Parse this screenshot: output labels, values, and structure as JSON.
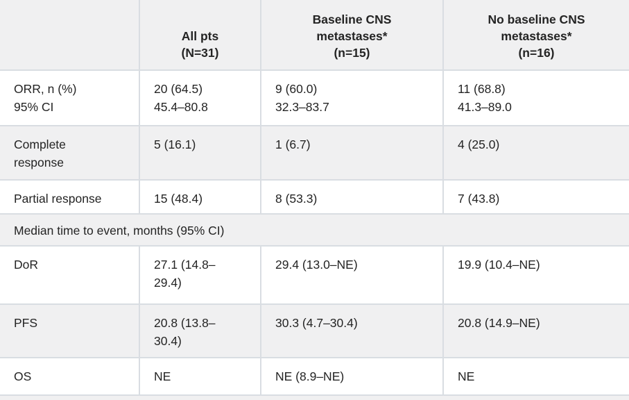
{
  "table": {
    "columns": [
      {
        "label": ""
      },
      {
        "label": "All pts\n(N=31)"
      },
      {
        "label": "Baseline CNS\nmetastases*\n(n=15)"
      },
      {
        "label": "No baseline CNS\nmetastases*\n(n=16)"
      }
    ],
    "rows": [
      {
        "label": "ORR, n (%)\n95% CI",
        "values": [
          "20 (64.5)\n45.4–80.8",
          "9 (60.0)\n32.3–83.7",
          "11 (68.8)\n41.3–89.0"
        ]
      },
      {
        "label": "Complete\nresponse",
        "values": [
          "5 (16.1)",
          "1 (6.7)",
          "4 (25.0)"
        ]
      },
      {
        "label": "Partial response",
        "values": [
          "15 (48.4)",
          "8 (53.3)",
          "7 (43.8)"
        ]
      },
      {
        "section_label": "Median time to event, months (95% CI)"
      },
      {
        "label": "DoR",
        "values": [
          "27.1 (14.8–\n29.4)",
          "29.4 (13.0–NE)",
          "19.9 (10.4–NE)"
        ]
      },
      {
        "label": "PFS",
        "values": [
          "20.8 (13.8–\n30.4)",
          "30.3 (4.7–30.4)",
          "20.8 (14.9–NE)"
        ]
      },
      {
        "label": "OS",
        "values": [
          "NE",
          "NE (8.9–NE)",
          "NE"
        ]
      }
    ],
    "colors": {
      "band_bg": "#f0f0f1",
      "separator": "#d9dde2",
      "text": "#242424",
      "row_bg": "#ffffff"
    }
  }
}
